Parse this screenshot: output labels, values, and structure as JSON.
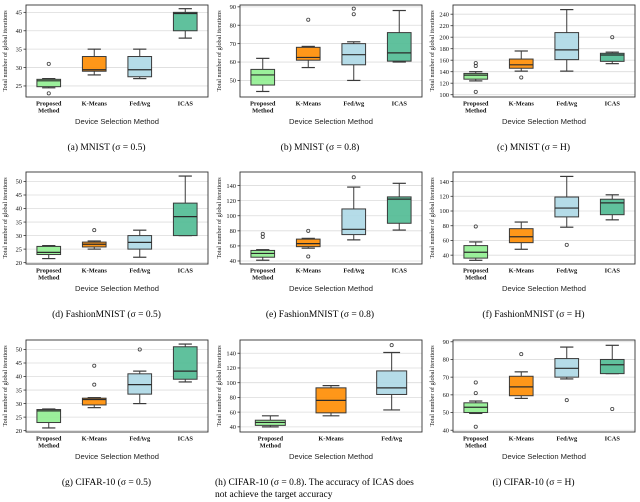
{
  "figure": {
    "ylabel": "Total number of global iterations",
    "xlabel": "Device Selection Method",
    "category_colors": [
      "#90EE90",
      "#FF8C00",
      "#ADD8E6",
      "#4FBA92"
    ],
    "box_edge_color": "#3a3a3a",
    "median_color": "#2b2b2b",
    "grid_color": "#dcdcdc",
    "axis_color": "#333333"
  },
  "chart_data": [
    {
      "type": "boxplot",
      "caption": "(a) MNIST (σ = 0.5)",
      "xlabel": "Device Selection Method",
      "ylabel": "Total number of global iterations",
      "categories": [
        "Proposed\nMethod",
        "K-Means",
        "FedAvg",
        "ICAS"
      ],
      "yticks": [
        25,
        30,
        35,
        40,
        45
      ],
      "ylim": [
        22,
        47
      ],
      "boxes": [
        {
          "label": "Proposed Method",
          "whislo": 24.5,
          "q1": 24.8,
          "med": 26.4,
          "q3": 26.8,
          "whishi": 27,
          "fliers": [
            31,
            23
          ]
        },
        {
          "label": "K-Means",
          "whislo": 28,
          "q1": 29,
          "med": 29.4,
          "q3": 33,
          "whishi": 35,
          "fliers": []
        },
        {
          "label": "FedAvg",
          "whislo": 27,
          "q1": 27.5,
          "med": 29.4,
          "q3": 33,
          "whishi": 35,
          "fliers": []
        },
        {
          "label": "ICAS",
          "whislo": 38,
          "q1": 40,
          "med": 44.7,
          "q3": 45,
          "whishi": 46,
          "fliers": []
        }
      ]
    },
    {
      "type": "boxplot",
      "caption": "(b) MNIST (σ = 0.8)",
      "xlabel": "Device Selection Method",
      "ylabel": "Total number of global iterations",
      "categories": [
        "Proposed\nMethod",
        "K-Means",
        "FedAvg",
        "ICAS"
      ],
      "yticks": [
        50,
        60,
        70,
        80,
        90
      ],
      "ylim": [
        41,
        91
      ],
      "boxes": [
        {
          "label": "Proposed Method",
          "whislo": 44,
          "q1": 47.5,
          "med": 53,
          "q3": 56,
          "whishi": 62,
          "fliers": []
        },
        {
          "label": "K-Means",
          "whislo": 57,
          "q1": 61,
          "med": 62.5,
          "q3": 68,
          "whishi": 68.5,
          "fliers": [
            83
          ]
        },
        {
          "label": "FedAvg",
          "whislo": 50,
          "q1": 58.5,
          "med": 64,
          "q3": 70,
          "whishi": 71,
          "fliers": [
            86,
            89
          ]
        },
        {
          "label": "ICAS",
          "whislo": 60,
          "q1": 60.5,
          "med": 65,
          "q3": 76,
          "whishi": 88,
          "fliers": []
        }
      ]
    },
    {
      "type": "boxplot",
      "caption": "(c) MNIST (σ = H)",
      "xlabel": "Device Selection Method",
      "ylabel": "Total number of global iterations",
      "categories": [
        "Proposed\nMethod",
        "K-Means",
        "FedAvg",
        "ICAS"
      ],
      "yticks": [
        100,
        120,
        140,
        160,
        180,
        200,
        220,
        240
      ],
      "ylim": [
        96,
        256
      ],
      "boxes": [
        {
          "label": "Proposed Method",
          "whislo": 124,
          "q1": 127,
          "med": 134,
          "q3": 137,
          "whishi": 140,
          "fliers": [
            105,
            150,
            155
          ]
        },
        {
          "label": "K-Means",
          "whislo": 141,
          "q1": 146,
          "med": 152,
          "q3": 162,
          "whishi": 176,
          "fliers": [
            130
          ]
        },
        {
          "label": "FedAvg",
          "whislo": 141,
          "q1": 161,
          "med": 178,
          "q3": 208,
          "whishi": 248,
          "fliers": []
        },
        {
          "label": "ICAS",
          "whislo": 154,
          "q1": 158,
          "med": 169,
          "q3": 172,
          "whishi": 174,
          "fliers": [
            200
          ]
        }
      ]
    },
    {
      "type": "boxplot",
      "caption": "(d) FashionMNIST (σ = 0.5)",
      "xlabel": "Device Selection Method",
      "ylabel": "Total number of global iterations",
      "categories": [
        "Proposed\nMethod",
        "K-Means",
        "FedAvg",
        "ICAS"
      ],
      "yticks": [
        20,
        25,
        30,
        35,
        40,
        45,
        50
      ],
      "ylim": [
        19.5,
        53.5
      ],
      "boxes": [
        {
          "label": "Proposed Method",
          "whislo": 21.5,
          "q1": 23,
          "med": 23.8,
          "q3": 26,
          "whishi": 26.3,
          "fliers": []
        },
        {
          "label": "K-Means",
          "whislo": 25,
          "q1": 25.8,
          "med": 26.8,
          "q3": 27.6,
          "whishi": 28,
          "fliers": [
            32
          ]
        },
        {
          "label": "FedAvg",
          "whislo": 22,
          "q1": 25,
          "med": 27.5,
          "q3": 30,
          "whishi": 32,
          "fliers": []
        },
        {
          "label": "ICAS",
          "whislo": 30,
          "q1": 30,
          "med": 37,
          "q3": 42,
          "whishi": 52,
          "fliers": []
        }
      ]
    },
    {
      "type": "boxplot",
      "caption": "(e) FashionMNIST (σ = 0.8)",
      "xlabel": "Device Selection Method",
      "ylabel": "Total number of global iterations",
      "categories": [
        "Proposed\nMethod",
        "K-Means",
        "FedAvg",
        "ICAS"
      ],
      "yticks": [
        40,
        60,
        80,
        100,
        120,
        140
      ],
      "ylim": [
        36,
        158
      ],
      "boxes": [
        {
          "label": "Proposed Method",
          "whislo": 41,
          "q1": 45,
          "med": 50,
          "q3": 54,
          "whishi": 55,
          "fliers": [
            72,
            76
          ]
        },
        {
          "label": "K-Means",
          "whislo": 57,
          "q1": 59,
          "med": 63,
          "q3": 69,
          "whishi": 70,
          "fliers": [
            80,
            46
          ]
        },
        {
          "label": "FedAvg",
          "whislo": 68,
          "q1": 75,
          "med": 82,
          "q3": 109,
          "whishi": 138,
          "fliers": [
            151
          ]
        },
        {
          "label": "ICAS",
          "whislo": 81,
          "q1": 90,
          "med": 122,
          "q3": 125,
          "whishi": 143,
          "fliers": []
        }
      ]
    },
    {
      "type": "boxplot",
      "caption": "(f) FashionMNIST (σ = H)",
      "xlabel": "Device Selection Method",
      "ylabel": "Total number of global iterations",
      "categories": [
        "Proposed\nMethod",
        "K-Means",
        "FedAvg",
        "ICAS"
      ],
      "yticks": [
        40,
        60,
        80,
        100,
        120,
        140
      ],
      "ylim": [
        28,
        153
      ],
      "boxes": [
        {
          "label": "Proposed Method",
          "whislo": 33,
          "q1": 36,
          "med": 44,
          "q3": 53,
          "whishi": 58,
          "fliers": [
            79
          ]
        },
        {
          "label": "K-Means",
          "whislo": 48,
          "q1": 57,
          "med": 65,
          "q3": 76,
          "whishi": 85,
          "fliers": []
        },
        {
          "label": "FedAvg",
          "whislo": 78,
          "q1": 92,
          "med": 104,
          "q3": 119,
          "whishi": 147,
          "fliers": [
            54
          ]
        },
        {
          "label": "ICAS",
          "whislo": 88,
          "q1": 95,
          "med": 111,
          "q3": 116,
          "whishi": 122,
          "fliers": []
        }
      ]
    },
    {
      "type": "boxplot",
      "caption": "(g) CIFAR-10 (σ = 0.5)",
      "xlabel": "Device Selection Method",
      "ylabel": "Total number of global iterations",
      "categories": [
        "Proposed\nMethod",
        "K-Means",
        "FedAvg",
        "ICAS"
      ],
      "yticks": [
        20,
        25,
        30,
        35,
        40,
        45,
        50
      ],
      "ylim": [
        19.5,
        53.5
      ],
      "boxes": [
        {
          "label": "Proposed Method",
          "whislo": 21,
          "q1": 23,
          "med": 27.3,
          "q3": 27.8,
          "whishi": 28,
          "fliers": []
        },
        {
          "label": "K-Means",
          "whislo": 28.5,
          "q1": 29.5,
          "med": 31.5,
          "q3": 32,
          "whishi": 32.2,
          "fliers": [
            37,
            44
          ]
        },
        {
          "label": "FedAvg",
          "whislo": 30,
          "q1": 33.5,
          "med": 37,
          "q3": 41,
          "whishi": 42,
          "fliers": [
            50
          ]
        },
        {
          "label": "ICAS",
          "whislo": 38,
          "q1": 39,
          "med": 42,
          "q3": 51,
          "whishi": 52,
          "fliers": []
        }
      ]
    },
    {
      "type": "boxplot",
      "caption": "(h) CIFAR-10 (σ = 0.8). The accuracy of ICAS does not achieve the target accuracy",
      "xlabel": "Device Selection Method",
      "ylabel": "Total number of global iterations",
      "categories": [
        "Proposed\nMethod",
        "K-Means",
        "FedAvg"
      ],
      "yticks": [
        40,
        60,
        80,
        100,
        120,
        140
      ],
      "ylim": [
        33,
        158
      ],
      "boxes": [
        {
          "label": "Proposed Method",
          "whislo": 40,
          "q1": 42,
          "med": 46,
          "q3": 49,
          "whishi": 55,
          "fliers": []
        },
        {
          "label": "K-Means",
          "whislo": 55,
          "q1": 59,
          "med": 76,
          "q3": 93,
          "whishi": 96,
          "fliers": []
        },
        {
          "label": "FedAvg",
          "whislo": 63,
          "q1": 84,
          "med": 93,
          "q3": 116,
          "whishi": 141,
          "fliers": [
            151
          ]
        }
      ]
    },
    {
      "type": "boxplot",
      "caption": "(i) CIFAR-10 (σ = H)",
      "xlabel": "Device Selection Method",
      "ylabel": "Total number of global iterations",
      "categories": [
        "Proposed\nMethod",
        "K-Means",
        "FedAvg",
        "ICAS"
      ],
      "yticks": [
        40,
        50,
        60,
        70,
        80,
        90
      ],
      "ylim": [
        39,
        91
      ],
      "boxes": [
        {
          "label": "Proposed Method",
          "whislo": 49.5,
          "q1": 50,
          "med": 53,
          "q3": 55.5,
          "whishi": 56.5,
          "fliers": [
            42,
            61,
            67
          ]
        },
        {
          "label": "K-Means",
          "whislo": 58,
          "q1": 59.5,
          "med": 64.5,
          "q3": 70.5,
          "whishi": 73,
          "fliers": [
            83
          ]
        },
        {
          "label": "FedAvg",
          "whislo": 69,
          "q1": 70,
          "med": 75,
          "q3": 80.5,
          "whishi": 87,
          "fliers": [
            57
          ]
        },
        {
          "label": "ICAS",
          "whislo": 72,
          "q1": 72,
          "med": 77,
          "q3": 80,
          "whishi": 88,
          "fliers": [
            52
          ]
        }
      ]
    }
  ]
}
